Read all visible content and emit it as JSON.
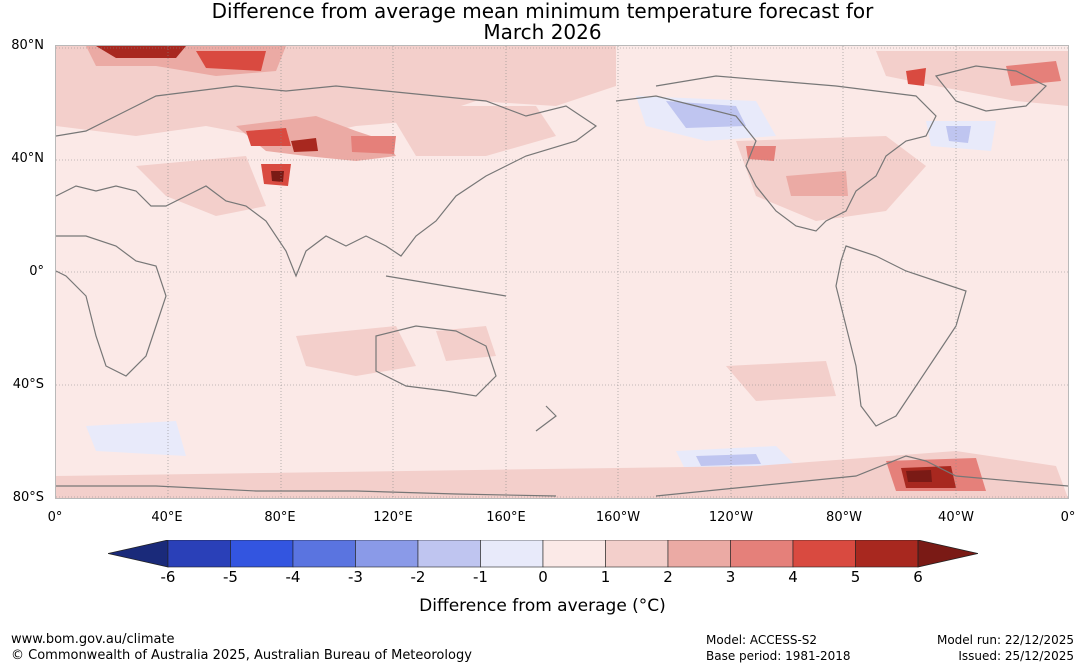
{
  "title": {
    "line1": "Difference from average mean minimum temperature forecast for",
    "line2": "March 2026"
  },
  "map": {
    "lat_labels": [
      "80°N",
      "40°N",
      "0°",
      "40°S",
      "80°S"
    ],
    "lon_labels": [
      "0°",
      "40°E",
      "80°E",
      "120°E",
      "160°E",
      "160°W",
      "120°W",
      "80°W",
      "40°W",
      "0°"
    ]
  },
  "colorbar": {
    "ticks": [
      "-6",
      "-5",
      "-4",
      "-3",
      "-2",
      "-1",
      "0",
      "1",
      "2",
      "3",
      "4",
      "5",
      "6"
    ],
    "colors": [
      "#1a2a7a",
      "#2a40b8",
      "#3355e0",
      "#5a74e0",
      "#8a9ae8",
      "#bfc5f0",
      "#e8eafa",
      "#fbe9e7",
      "#f3cfcb",
      "#ebaaa4",
      "#e5807a",
      "#d94a40",
      "#a8281f",
      "#7a1a15"
    ],
    "label": "Difference from average (°C)"
  },
  "footer": {
    "url": "www.bom.gov.au/climate",
    "copyright": "© Commonwealth of Australia 2025, Australian Bureau of Meteorology",
    "model": "Model: ACCESS-S2",
    "base_period": "Base period: 1981-2018",
    "model_run": "Model run: 22/12/2025",
    "issued": "Issued: 25/12/2025"
  }
}
